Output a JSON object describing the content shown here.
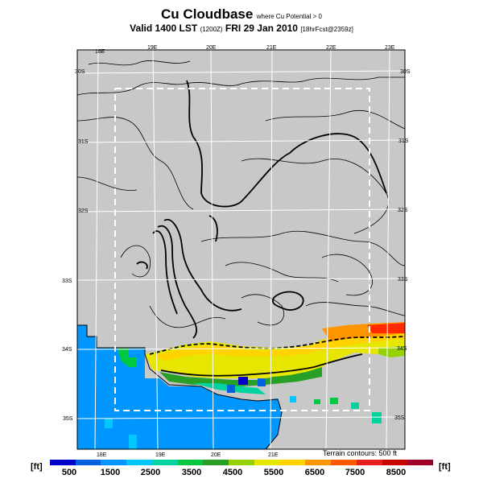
{
  "title": {
    "main": "Cu Cloudbase",
    "sub": "where Cu Potential > 0",
    "valid": "Valid 1400 LST",
    "valid_small": "(1200Z)",
    "date": "FRI 29 Jan 2010",
    "forecast": "[18hrFcst@2359z]"
  },
  "map": {
    "lon_labels_top": [
      "18E",
      "19E",
      "20E",
      "21E",
      "22E",
      "23E"
    ],
    "lon_labels_bottom": [
      "18E",
      "19E",
      "20E",
      "21E"
    ],
    "lat_labels_left": [
      "30S",
      "31S",
      "32S",
      "33S",
      "34S",
      "35S"
    ],
    "lat_labels_right": [
      "30S",
      "31S",
      "32S",
      "33S",
      "34S",
      "35S"
    ],
    "terrain_note": "Terrain contours: 500 ft"
  },
  "colorbar": {
    "unit_left": "[ft]",
    "unit_right": "[ft]",
    "labels": [
      "500",
      "1500",
      "2500",
      "3500",
      "4500",
      "5500",
      "6500",
      "7500",
      "8500"
    ],
    "colors": [
      "#0000c8",
      "#0060e0",
      "#0096ff",
      "#00c8ff",
      "#00d2a0",
      "#00c840",
      "#28a028",
      "#96d200",
      "#e6e600",
      "#ffd200",
      "#ff9600",
      "#ff5a00",
      "#e61e1e",
      "#c80000",
      "#a00028"
    ]
  },
  "legend_colors": {
    "ocean": "#0096ff",
    "land": "#c8c8c8"
  }
}
